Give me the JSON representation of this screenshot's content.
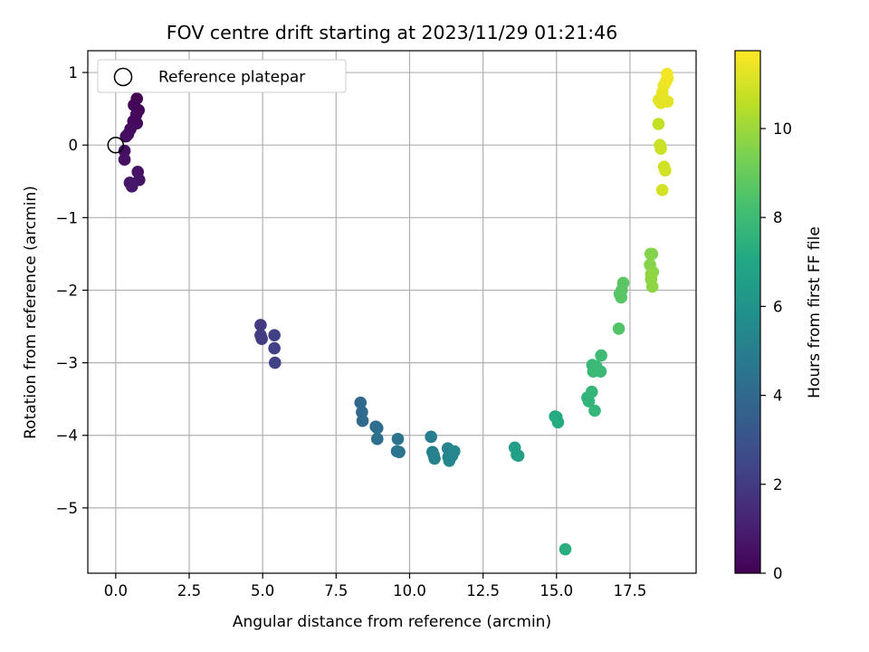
{
  "chart_data": {
    "type": "scatter",
    "title": "FOV centre drift starting at 2023/11/29 01:21:46",
    "xlabel": "Angular distance from reference (arcmin)",
    "ylabel": "Rotation from reference (arcmin)",
    "xlim": [
      -0.95,
      19.75
    ],
    "ylim": [
      -5.9,
      1.3
    ],
    "xticks": [
      0,
      2.5,
      5,
      7.5,
      10,
      12.5,
      15,
      17.5
    ],
    "xtick_labels": [
      "0.0",
      "2.5",
      "5.0",
      "7.5",
      "10.0",
      "12.5",
      "15.0",
      "17.5"
    ],
    "yticks": [
      1,
      0,
      -1,
      -2,
      -3,
      -4,
      -5
    ],
    "ytick_labels": [
      "1",
      "0",
      "−1",
      "−2",
      "−3",
      "−4",
      "−5"
    ],
    "grid": true,
    "legend": {
      "placement": "upper-left",
      "entries": [
        "Reference platepar"
      ]
    },
    "reference_point": {
      "x": 0,
      "y": 0,
      "label": "Reference platepar"
    },
    "colorbar": {
      "label": "Hours from first FF file",
      "range": [
        0,
        11.75
      ],
      "ticks": [
        0,
        2,
        4,
        6,
        8,
        10
      ],
      "tick_labels": [
        "0",
        "2",
        "4",
        "6",
        "8",
        "10"
      ],
      "colormap": "viridis"
    },
    "points": [
      {
        "x": 0.72,
        "y": 0.64,
        "h": 0.05
      },
      {
        "x": 0.62,
        "y": 0.55,
        "h": 0.1
      },
      {
        "x": 0.78,
        "y": 0.48,
        "h": 0.15
      },
      {
        "x": 0.7,
        "y": 0.42,
        "h": 0.2
      },
      {
        "x": 0.6,
        "y": 0.33,
        "h": 0.25
      },
      {
        "x": 0.72,
        "y": 0.3,
        "h": 0.3
      },
      {
        "x": 0.5,
        "y": 0.22,
        "h": 0.35
      },
      {
        "x": 0.42,
        "y": 0.15,
        "h": 0.4
      },
      {
        "x": 0.35,
        "y": 0.12,
        "h": 0.45
      },
      {
        "x": 0.3,
        "y": -0.08,
        "h": 0.5
      },
      {
        "x": 0.3,
        "y": -0.2,
        "h": 0.55
      },
      {
        "x": 0.75,
        "y": -0.37,
        "h": 0.6
      },
      {
        "x": 0.8,
        "y": -0.48,
        "h": 0.65
      },
      {
        "x": 0.48,
        "y": -0.52,
        "h": 0.7
      },
      {
        "x": 0.55,
        "y": -0.57,
        "h": 0.75
      },
      {
        "x": 4.93,
        "y": -2.48,
        "h": 2.0
      },
      {
        "x": 4.93,
        "y": -2.62,
        "h": 2.05
      },
      {
        "x": 4.97,
        "y": -2.67,
        "h": 2.1
      },
      {
        "x": 5.4,
        "y": -2.62,
        "h": 2.2
      },
      {
        "x": 5.4,
        "y": -2.8,
        "h": 2.25
      },
      {
        "x": 5.42,
        "y": -3.0,
        "h": 2.3
      },
      {
        "x": 8.33,
        "y": -3.55,
        "h": 4.0
      },
      {
        "x": 8.38,
        "y": -3.68,
        "h": 4.05
      },
      {
        "x": 8.4,
        "y": -3.8,
        "h": 4.1
      },
      {
        "x": 8.85,
        "y": -3.88,
        "h": 4.2
      },
      {
        "x": 8.9,
        "y": -3.9,
        "h": 4.25
      },
      {
        "x": 8.9,
        "y": -4.05,
        "h": 4.3
      },
      {
        "x": 9.6,
        "y": -4.05,
        "h": 4.5
      },
      {
        "x": 9.57,
        "y": -4.22,
        "h": 4.55
      },
      {
        "x": 9.65,
        "y": -4.23,
        "h": 4.6
      },
      {
        "x": 10.73,
        "y": -4.02,
        "h": 5.0
      },
      {
        "x": 10.78,
        "y": -4.23,
        "h": 5.05
      },
      {
        "x": 10.82,
        "y": -4.27,
        "h": 5.1
      },
      {
        "x": 10.85,
        "y": -4.32,
        "h": 5.15
      },
      {
        "x": 11.3,
        "y": -4.18,
        "h": 5.25
      },
      {
        "x": 11.32,
        "y": -4.3,
        "h": 5.3
      },
      {
        "x": 11.35,
        "y": -4.35,
        "h": 5.35
      },
      {
        "x": 11.45,
        "y": -4.28,
        "h": 5.4
      },
      {
        "x": 11.52,
        "y": -4.22,
        "h": 5.45
      },
      {
        "x": 13.58,
        "y": -4.17,
        "h": 6.5
      },
      {
        "x": 13.65,
        "y": -4.27,
        "h": 6.55
      },
      {
        "x": 13.7,
        "y": -4.28,
        "h": 6.6
      },
      {
        "x": 14.95,
        "y": -3.74,
        "h": 7.1
      },
      {
        "x": 15.0,
        "y": -3.75,
        "h": 7.15
      },
      {
        "x": 15.05,
        "y": -3.82,
        "h": 7.2
      },
      {
        "x": 15.3,
        "y": -5.57,
        "h": 7.35
      },
      {
        "x": 16.05,
        "y": -3.48,
        "h": 7.6
      },
      {
        "x": 16.1,
        "y": -3.53,
        "h": 7.65
      },
      {
        "x": 16.2,
        "y": -3.4,
        "h": 7.7
      },
      {
        "x": 16.3,
        "y": -3.66,
        "h": 7.75
      },
      {
        "x": 16.22,
        "y": -3.03,
        "h": 7.8
      },
      {
        "x": 16.25,
        "y": -3.12,
        "h": 7.85
      },
      {
        "x": 16.35,
        "y": -3.05,
        "h": 7.9
      },
      {
        "x": 16.5,
        "y": -3.12,
        "h": 7.95
      },
      {
        "x": 16.52,
        "y": -2.9,
        "h": 8.0
      },
      {
        "x": 17.12,
        "y": -2.53,
        "h": 8.5
      },
      {
        "x": 17.15,
        "y": -2.05,
        "h": 8.6
      },
      {
        "x": 17.2,
        "y": -2.1,
        "h": 8.65
      },
      {
        "x": 17.22,
        "y": -2.0,
        "h": 8.7
      },
      {
        "x": 17.27,
        "y": -1.9,
        "h": 8.75
      },
      {
        "x": 18.2,
        "y": -1.5,
        "h": 9.5
      },
      {
        "x": 18.25,
        "y": -1.5,
        "h": 9.55
      },
      {
        "x": 18.18,
        "y": -1.65,
        "h": 9.6
      },
      {
        "x": 18.28,
        "y": -1.75,
        "h": 9.65
      },
      {
        "x": 18.22,
        "y": -1.85,
        "h": 9.7
      },
      {
        "x": 18.26,
        "y": -1.95,
        "h": 9.75
      },
      {
        "x": 18.22,
        "y": -1.78,
        "h": 9.8
      },
      {
        "x": 18.47,
        "y": 0.29,
        "h": 10.7
      },
      {
        "x": 18.52,
        "y": 0.0,
        "h": 10.8
      },
      {
        "x": 18.55,
        "y": -0.05,
        "h": 10.85
      },
      {
        "x": 18.66,
        "y": -0.3,
        "h": 10.9
      },
      {
        "x": 18.7,
        "y": -0.35,
        "h": 10.95
      },
      {
        "x": 18.6,
        "y": -0.62,
        "h": 11.0
      },
      {
        "x": 18.48,
        "y": 0.62,
        "h": 11.2
      },
      {
        "x": 18.55,
        "y": 0.58,
        "h": 11.25
      },
      {
        "x": 18.78,
        "y": 0.6,
        "h": 11.3
      },
      {
        "x": 18.6,
        "y": 0.72,
        "h": 11.35
      },
      {
        "x": 18.65,
        "y": 0.82,
        "h": 11.4
      },
      {
        "x": 18.72,
        "y": 0.87,
        "h": 11.45
      },
      {
        "x": 18.78,
        "y": 0.92,
        "h": 11.5
      },
      {
        "x": 18.76,
        "y": 0.98,
        "h": 11.55
      }
    ]
  }
}
